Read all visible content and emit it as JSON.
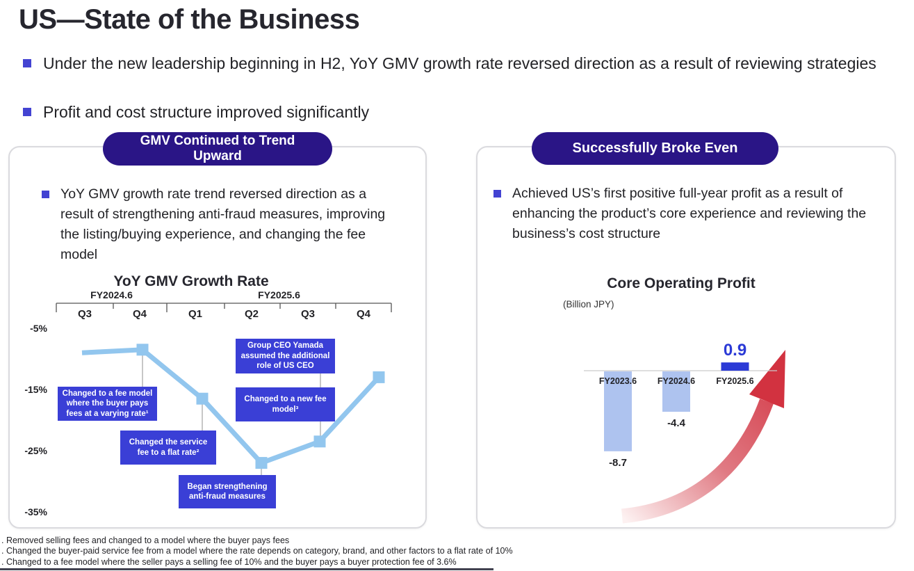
{
  "slide": {
    "title": "US—State of the Business",
    "bullets": [
      "Under the new leadership beginning in H2, YoY GMV growth rate reversed direction as a result of reviewing strategies",
      "Profit and cost structure improved significantly"
    ]
  },
  "left_panel": {
    "header": "GMV Continued to Trend Upward",
    "bullet": "YoY GMV growth rate trend reversed direction as a result of strengthening anti-fraud measures, improving the listing/buying experience, and changing the fee model"
  },
  "right_panel": {
    "header": "Successfully Broke Even",
    "bullet": "Achieved US’s first positive full-year profit as a result of enhancing the product’s core experience and reviewing the business’s cost structure"
  },
  "footnotes": [
    ". Removed selling fees and changed to a model where the buyer pays fees",
    ". Changed the buyer-paid service fee from a model where the rate depends on category, brand, and other factors to a flat rate of 10%",
    ". Changed to a fee model where the seller pays a selling fee of 10% and the buyer pays a buyer protection fee of 3.6%"
  ],
  "colors": {
    "accent_indigo": "#2a1586",
    "annotation_blue": "#3a3fd6",
    "bullet_blue": "#4343d2",
    "line_blue": "#92c6ee",
    "bar_light_blue": "#aec3ef",
    "bar_dark_blue": "#2b3ad6",
    "arrow_red": "#d23240"
  },
  "chart_data": [
    {
      "type": "line",
      "title": "YoY GMV Growth Rate",
      "unit": "%",
      "x_groups": [
        {
          "label": "FY2024.6",
          "quarters": [
            "Q3",
            "Q4"
          ]
        },
        {
          "label": "FY2025.6",
          "quarters": [
            "Q1",
            "Q2",
            "Q3",
            "Q4"
          ]
        }
      ],
      "categories": [
        "Q3",
        "Q4",
        "Q1",
        "Q2",
        "Q3",
        "Q4"
      ],
      "values": [
        -9,
        -8.5,
        -16.5,
        -27,
        -23.5,
        -13
      ],
      "y_ticks": [
        "-5%",
        "-15%",
        "-25%",
        "-35%"
      ],
      "ylim": [
        -37,
        -3
      ],
      "annotations": [
        {
          "text": "Changed to a fee model where the buyer pays fees at a varying rate¹",
          "attached_to": "Q4 FY2024.6"
        },
        {
          "text": "Changed the service fee to a flat rate²",
          "attached_to": "Q1 FY2025.6"
        },
        {
          "text": "Began strengthening anti-fraud measures",
          "attached_to": "Q2 FY2025.6"
        },
        {
          "text": "Group CEO Yamada assumed the additional role of US CEO",
          "attached_to": "Q3 FY2025.6"
        },
        {
          "text": "Changed to a new fee model³",
          "attached_to": "Q3 FY2025.6"
        }
      ]
    },
    {
      "type": "bar",
      "title": "Core Operating Profit",
      "unit_label": "(Billion JPY)",
      "categories": [
        "FY2023.6",
        "FY2024.6",
        "FY2025.6"
      ],
      "values": [
        -8.7,
        -4.4,
        0.9
      ]
    }
  ]
}
